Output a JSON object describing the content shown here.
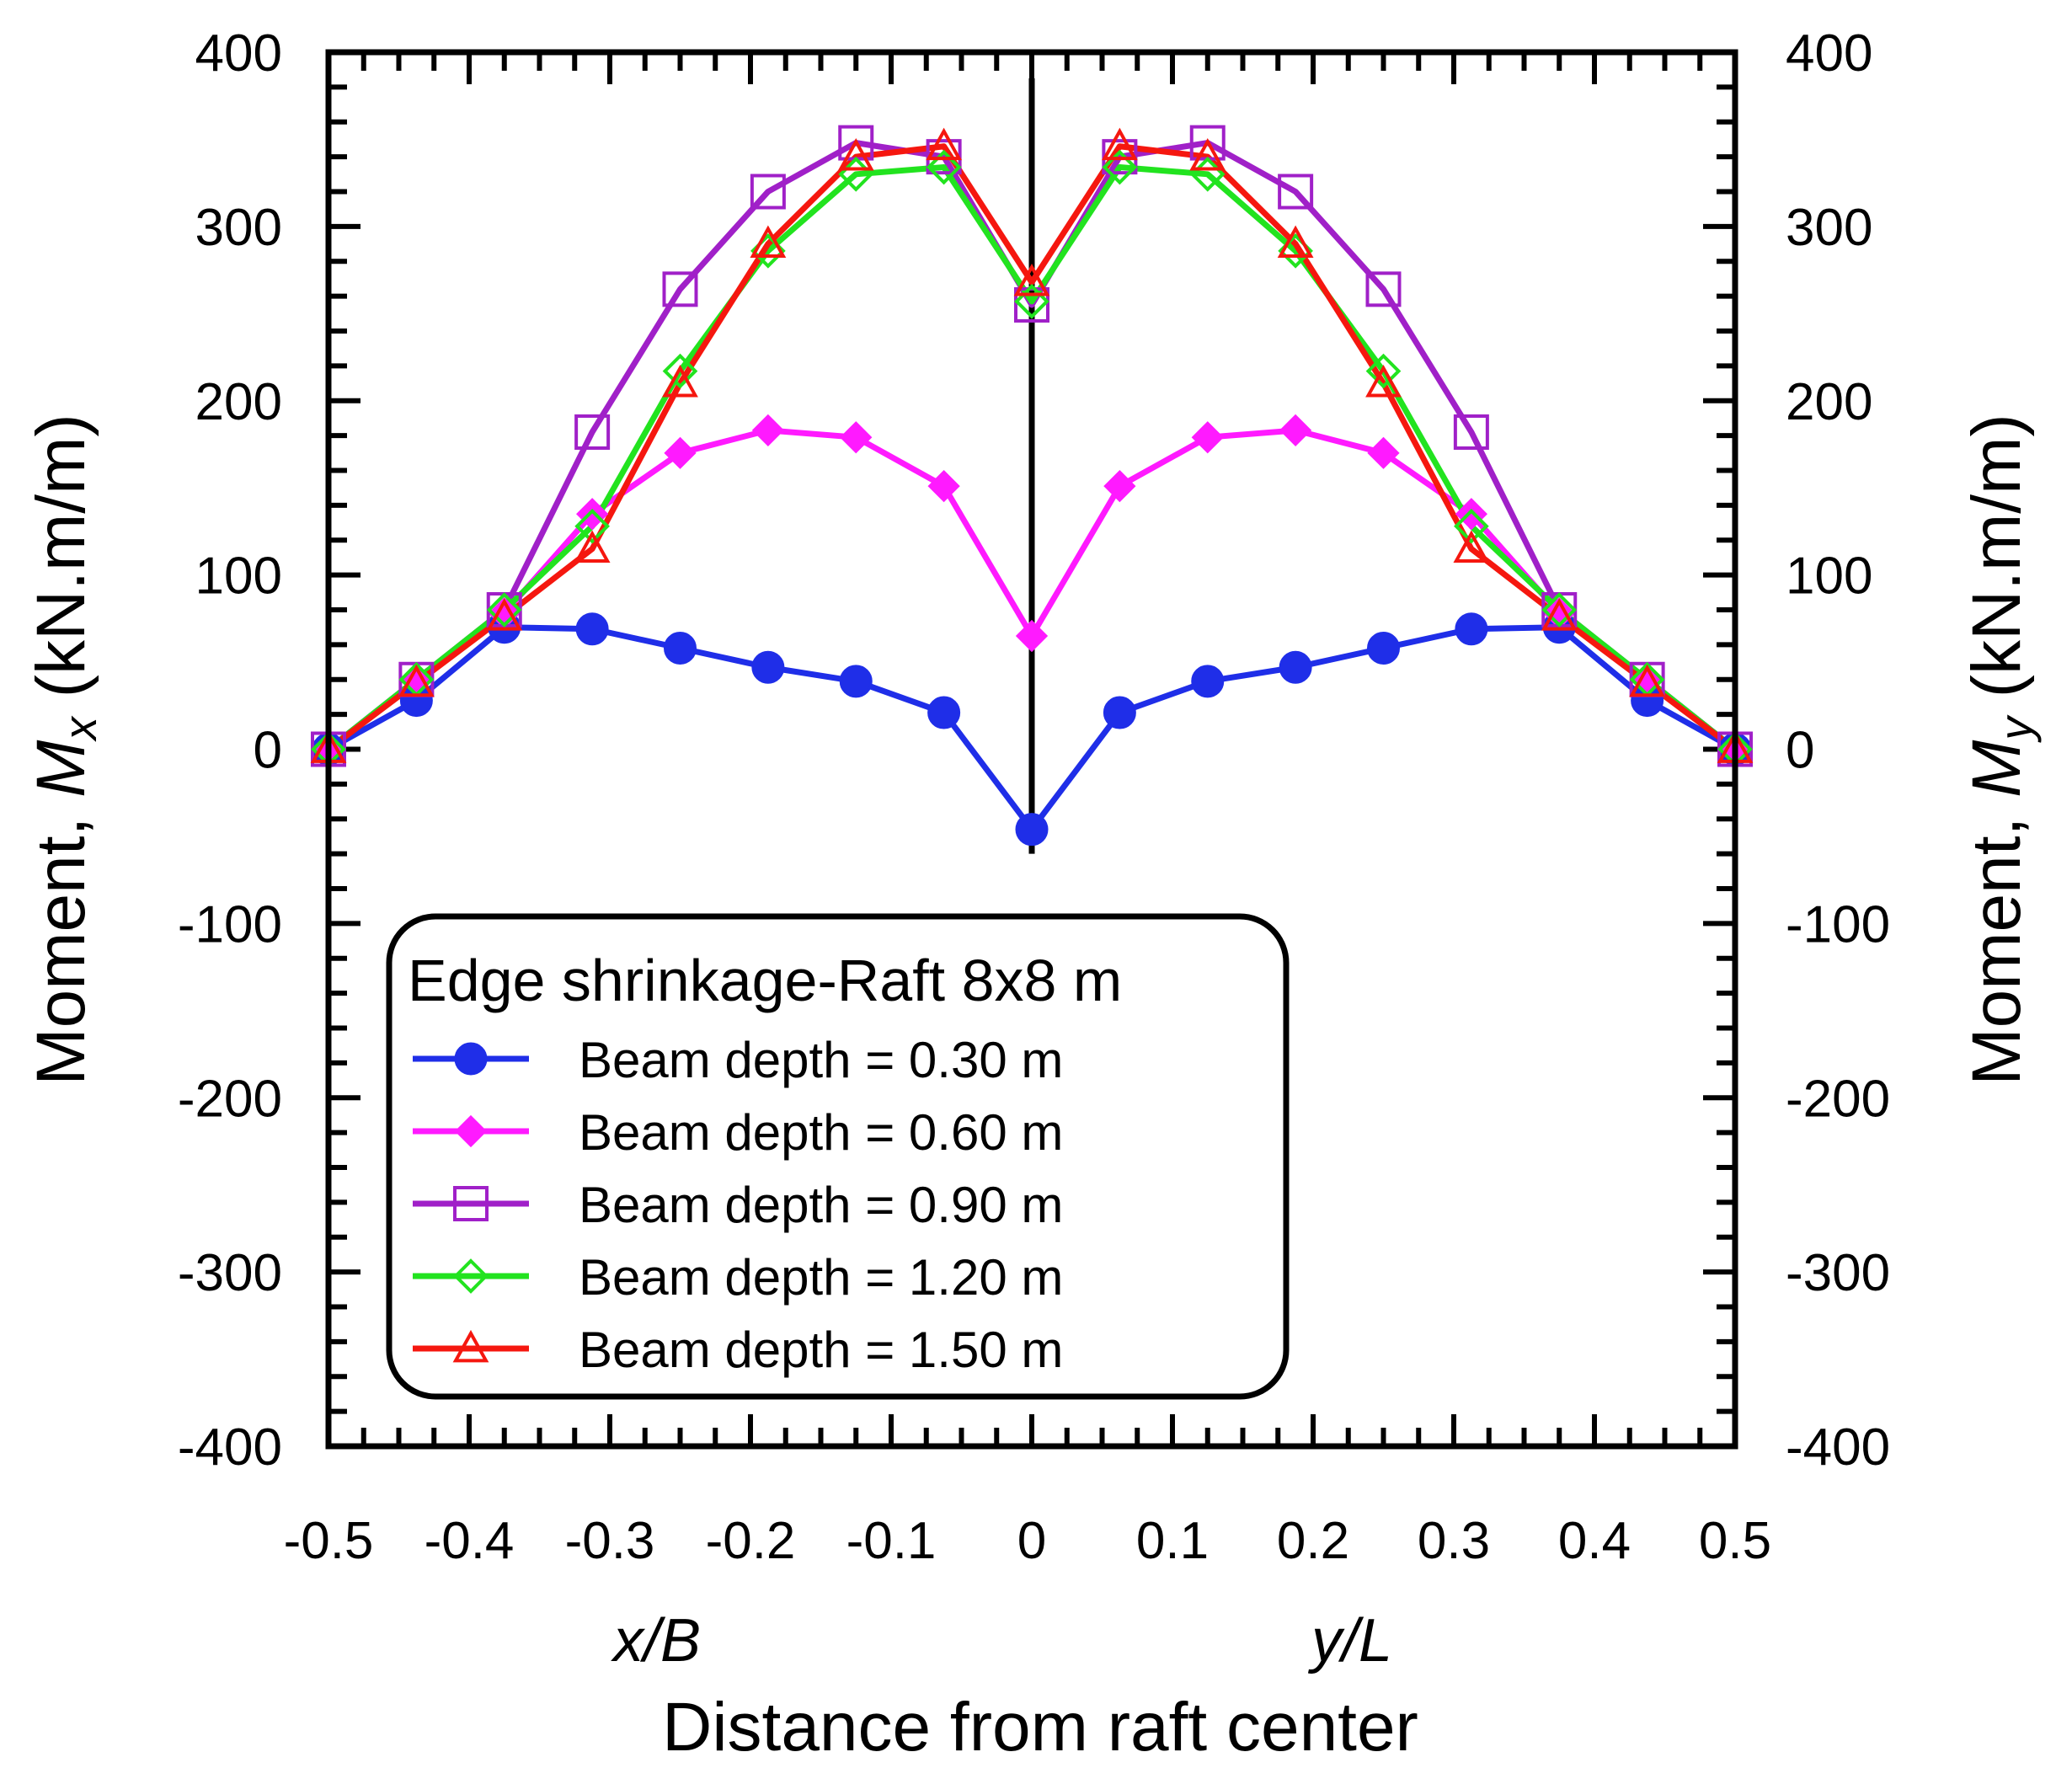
{
  "chart_data": {
    "type": "line",
    "x_left_label": "x/B",
    "x_right_label": "y/L",
    "xlabel": "Distance from raft center",
    "ylabel_left_prefix": "Moment, ",
    "ylabel_left_symbol": "M",
    "ylabel_left_sub": "x",
    "ylabel_left_unit": " (kN.m/m)",
    "ylabel_right_prefix": "Moment, ",
    "ylabel_right_symbol": "M",
    "ylabel_right_sub": "y",
    "ylabel_right_unit": " (kN.m/m)",
    "xlim": [
      -0.5,
      0.5
    ],
    "ylim": [
      -400,
      400
    ],
    "x_ticks": [
      -0.5,
      -0.4,
      -0.3,
      -0.2,
      -0.1,
      0,
      0.1,
      0.2,
      0.3,
      0.4,
      0.5
    ],
    "x_tick_labels": [
      "-0.5",
      "-0.4",
      "-0.3",
      "-0.2",
      "-0.1",
      "0",
      "0.1",
      "0.2",
      "0.3",
      "0.4",
      "0.5"
    ],
    "y_ticks": [
      -400,
      -300,
      -200,
      -100,
      0,
      100,
      200,
      300,
      400
    ],
    "y_tick_labels": [
      "-400",
      "-300",
      "-200",
      "-100",
      "0",
      "100",
      "200",
      "300",
      "400"
    ],
    "center_line_x": 0,
    "center_line_ylim": [
      -60,
      385
    ],
    "legend": {
      "title": "Edge shrinkage-Raft 8x8 m",
      "position": "bottom-center"
    },
    "x": [
      -0.5,
      -0.4375,
      -0.375,
      -0.3125,
      -0.25,
      -0.1875,
      -0.125,
      -0.0625,
      0,
      0.0625,
      0.125,
      0.1875,
      0.25,
      0.3125,
      0.375,
      0.4375,
      0.5
    ],
    "series": [
      {
        "name": "Beam depth = 0.30 m",
        "color": "#1f2ee8",
        "marker": "circle-filled",
        "values": [
          0,
          28,
          70,
          69,
          58,
          47,
          39,
          21,
          -46,
          21,
          39,
          47,
          58,
          69,
          70,
          28,
          0
        ]
      },
      {
        "name": "Beam depth = 0.60 m",
        "color": "#ff1aff",
        "marker": "diamond-filled",
        "values": [
          0,
          40,
          78,
          135,
          170,
          183,
          179,
          151,
          65,
          151,
          179,
          183,
          170,
          135,
          78,
          40,
          0
        ]
      },
      {
        "name": "Beam depth = 0.90 m",
        "color": "#a020c8",
        "marker": "square-open",
        "values": [
          0,
          40,
          80,
          182,
          264,
          320,
          348,
          340,
          255,
          340,
          348,
          320,
          264,
          182,
          80,
          40,
          0
        ]
      },
      {
        "name": "Beam depth = 1.20 m",
        "color": "#22e31f",
        "marker": "diamond-open",
        "values": [
          0,
          40,
          80,
          128,
          217,
          286,
          330,
          334,
          257,
          334,
          330,
          286,
          217,
          128,
          80,
          40,
          0
        ]
      },
      {
        "name": "Beam depth = 1.50 m",
        "color": "#f5170f",
        "marker": "triangle-open",
        "values": [
          0,
          38,
          76,
          115,
          210,
          290,
          340,
          346,
          268,
          346,
          340,
          290,
          210,
          115,
          76,
          38,
          0
        ]
      }
    ]
  }
}
